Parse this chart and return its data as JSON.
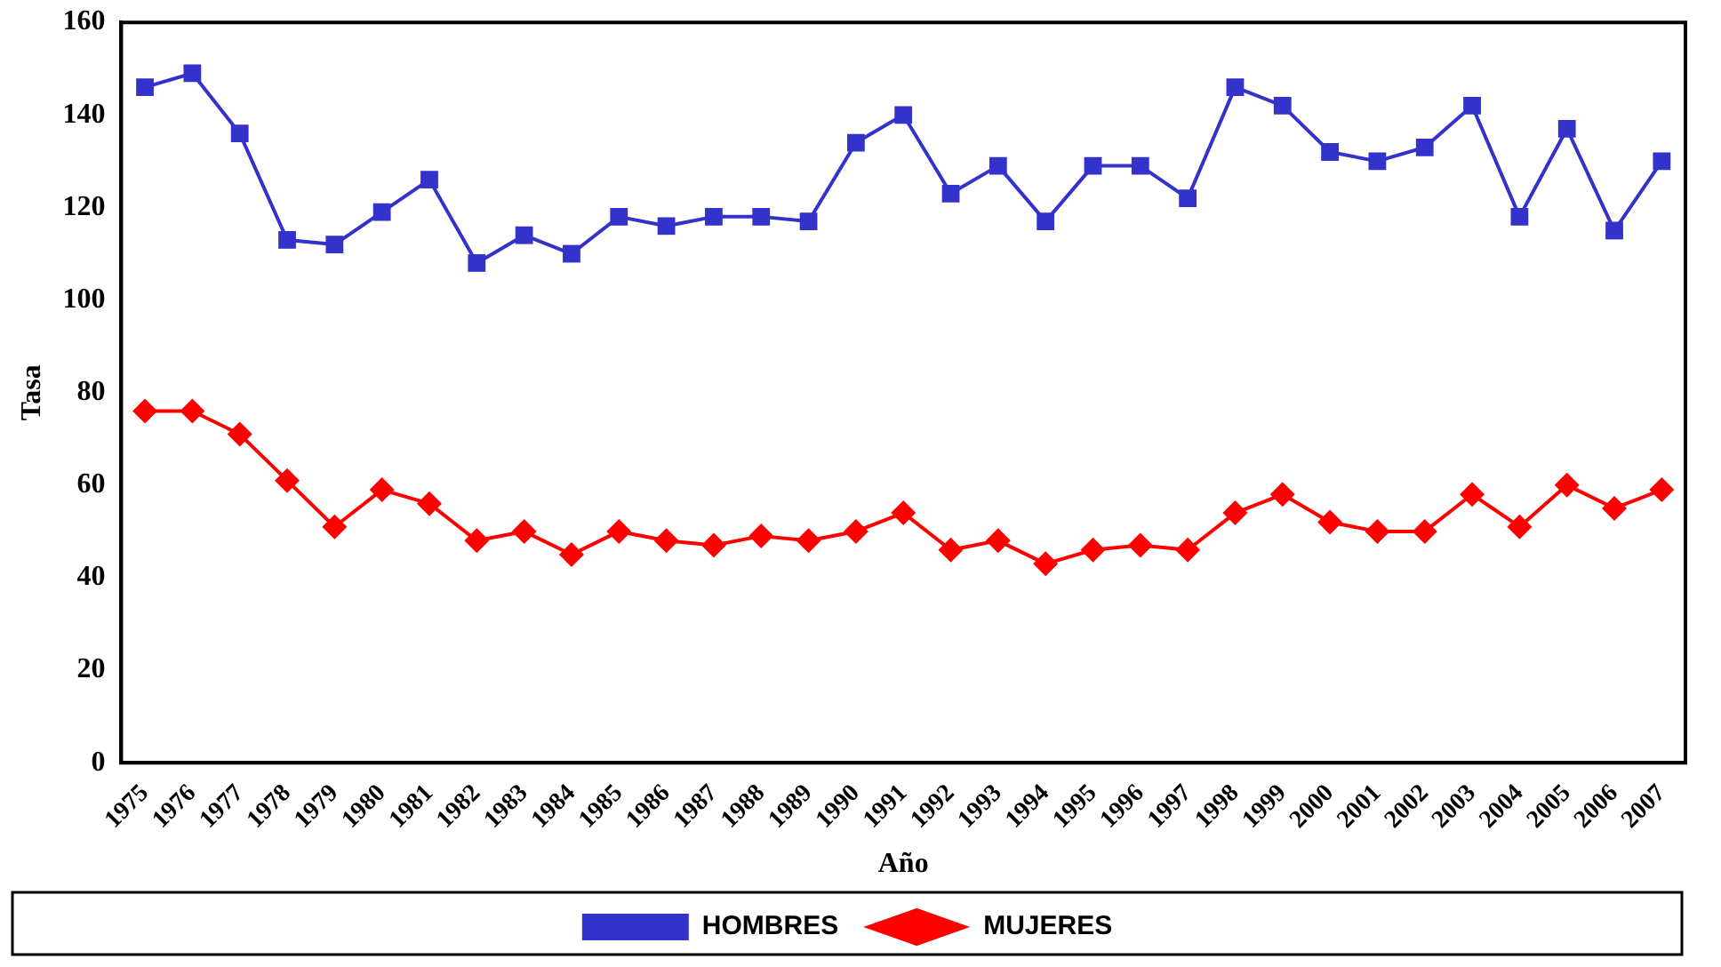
{
  "chart_data": {
    "type": "line",
    "xlabel": "Año",
    "ylabel": "Tasa",
    "categories": [
      "1975",
      "1976",
      "1977",
      "1978",
      "1979",
      "1980",
      "1981",
      "1982",
      "1983",
      "1984",
      "1985",
      "1986",
      "1987",
      "1988",
      "1989",
      "1990",
      "1991",
      "1992",
      "1993",
      "1994",
      "1995",
      "1996",
      "1997",
      "1998",
      "1999",
      "2000",
      "2001",
      "2002",
      "2003",
      "2004",
      "2005",
      "2006",
      "2007"
    ],
    "ylim": [
      0,
      160
    ],
    "yticks": [
      0,
      20,
      40,
      60,
      80,
      100,
      120,
      140,
      160
    ],
    "grid": false,
    "legend": "bottom",
    "series": [
      {
        "name": "HOMBRES",
        "color": "#3333cc",
        "marker": "square",
        "values": [
          146,
          149,
          136,
          113,
          112,
          119,
          126,
          108,
          114,
          110,
          118,
          116,
          118,
          118,
          117,
          134,
          140,
          123,
          129,
          117,
          129,
          129,
          122,
          146,
          142,
          132,
          130,
          133,
          142,
          118,
          137,
          115,
          130
        ]
      },
      {
        "name": "MUJERES",
        "color": "#ff0000",
        "marker": "diamond",
        "values": [
          76,
          76,
          71,
          61,
          51,
          59,
          56,
          48,
          50,
          45,
          50,
          48,
          47,
          49,
          48,
          50,
          54,
          46,
          48,
          43,
          46,
          47,
          46,
          54,
          58,
          52,
          50,
          50,
          58,
          51,
          60,
          55,
          59
        ]
      }
    ]
  }
}
